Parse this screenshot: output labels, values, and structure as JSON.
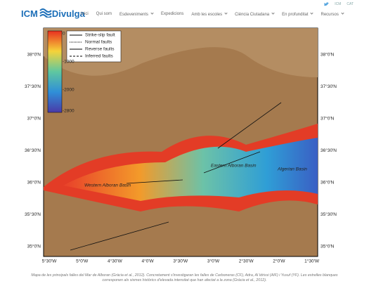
{
  "header": {
    "logo_a": "ICM",
    "logo_b": "Divulga",
    "top_links": [
      "ICM",
      "CAT"
    ],
    "nav": [
      {
        "label": "Inici",
        "dropdown": false
      },
      {
        "label": "Qui som",
        "dropdown": false
      },
      {
        "label": "Esdeveniments",
        "dropdown": true
      },
      {
        "label": "Expedicions",
        "dropdown": false
      },
      {
        "label": "Amb les escoles",
        "dropdown": true
      },
      {
        "label": "Ciència Ciutadana",
        "dropdown": true
      },
      {
        "label": "En profunditat",
        "dropdown": true
      },
      {
        "label": "Recursos",
        "dropdown": true
      }
    ]
  },
  "map": {
    "lat_labels": [
      "38°0'N",
      "37°30'N",
      "37°0'N",
      "36°30'N",
      "36°0'N",
      "35°30'N",
      "35°0'N"
    ],
    "lon_labels": [
      "5°30'W",
      "5°0'W",
      "4°30'W",
      "4°0'W",
      "3°30'W",
      "3°0'W",
      "2°30'W",
      "2°0'W",
      "1°30'W"
    ],
    "depth_labels": [
      "0",
      "-1000",
      "-2000",
      "-2800"
    ],
    "legend": [
      "Strike-slip fault",
      "Normal faults",
      "Reverse faults",
      "Inferred faults"
    ],
    "places": [
      "Western Alboran Basin",
      "Eastern Alboran Basin",
      "Algerian Basin"
    ]
  },
  "caption": "Mapa de les principals falles del Mar de Alboran (Gràcia et al., 2012). Concretament s'investigaran les falles de Carboneras (CF), Adra, Al Idrissi (AIF) i Yusuf (YF). Les estrelles blanques corresponen als sismes històrics d'elevada intensitat que han afectat a la zona (Gràcia et al., 2012)."
}
